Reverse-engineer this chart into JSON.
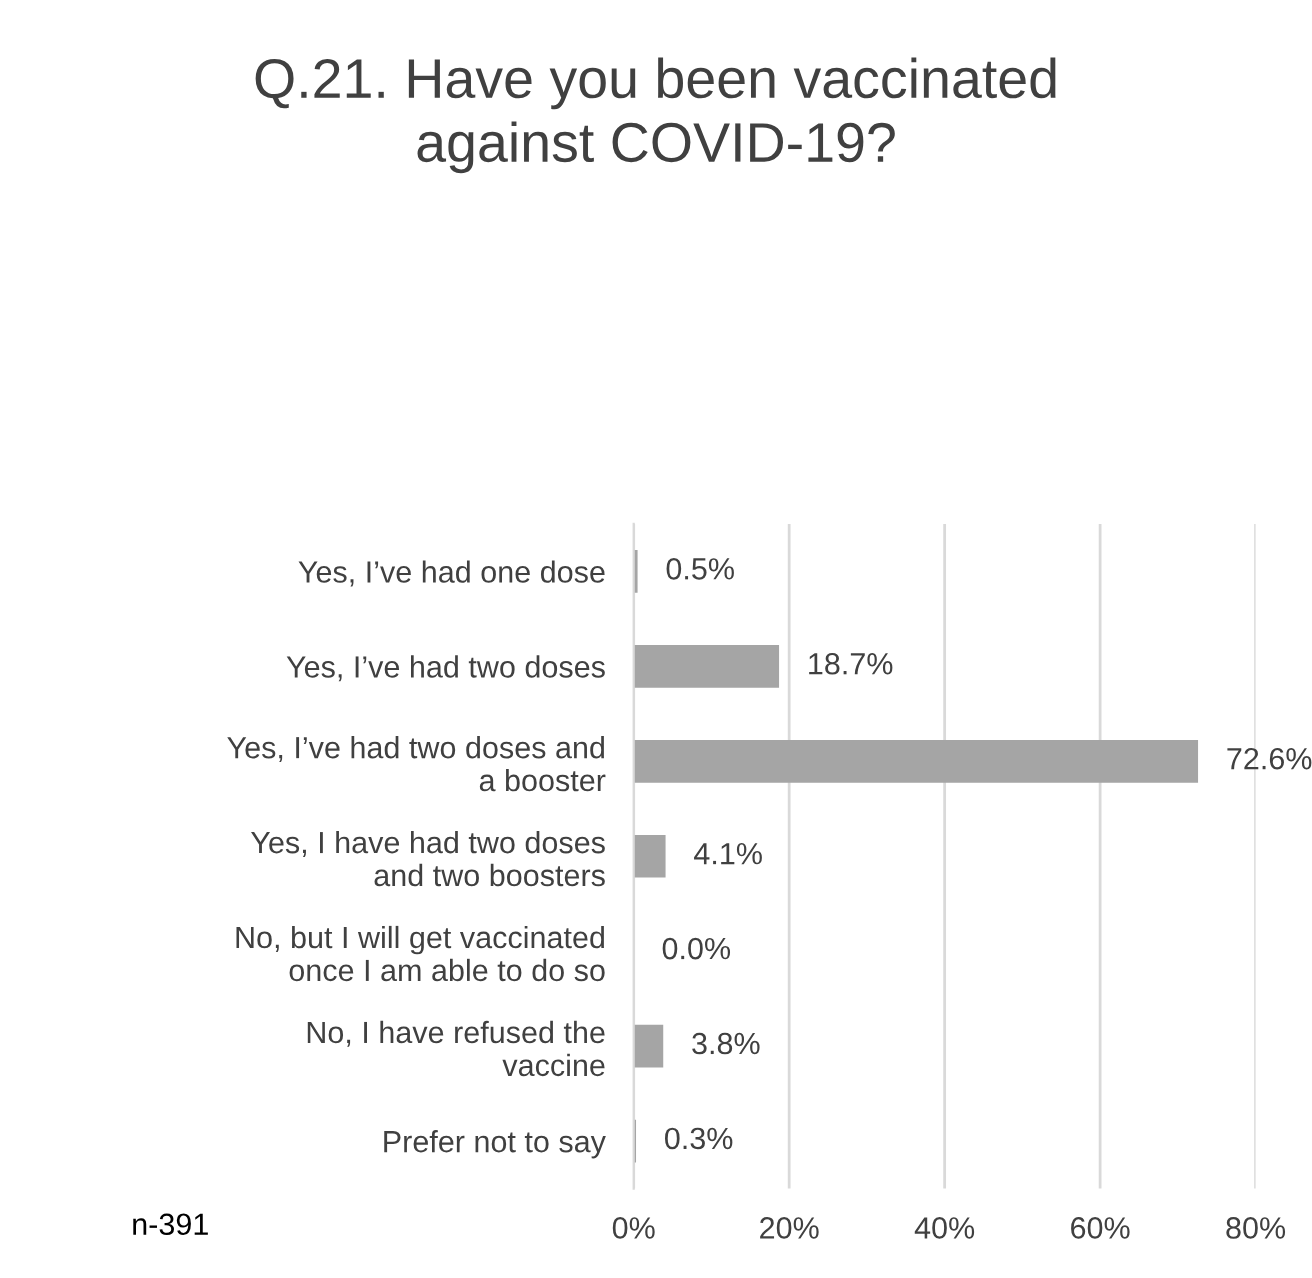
{
  "chart_data": {
    "type": "bar",
    "orientation": "horizontal",
    "title": "Q.21. Have you been vaccinated\nagainst COVID-19?",
    "categories": [
      "Yes, I’ve had one dose",
      "Yes, I’ve had two doses",
      "Yes, I’ve had two doses and\na booster",
      "Yes, I have had two doses\nand two boosters",
      "No, but I will get vaccinated\nonce I am able to do so",
      "No, I have refused the\nvaccine",
      "Prefer not to say"
    ],
    "values": [
      0.5,
      18.7,
      72.6,
      4.1,
      0.0,
      3.8,
      0.3
    ],
    "value_labels": [
      "0.5%",
      "18.7%",
      "72.6%",
      "4.1%",
      "0.0%",
      "3.8%",
      "0.3%"
    ],
    "color": "#a5a5a5",
    "xlim": [
      0,
      80
    ],
    "xticks": [
      {
        "value": 0,
        "label": "0%"
      },
      {
        "value": 20,
        "label": "20%"
      },
      {
        "value": 40,
        "label": "40%"
      },
      {
        "value": 60,
        "label": "60%"
      },
      {
        "value": 80,
        "label": "80%"
      }
    ],
    "grid": "x",
    "annotations": [
      "n-391"
    ]
  }
}
